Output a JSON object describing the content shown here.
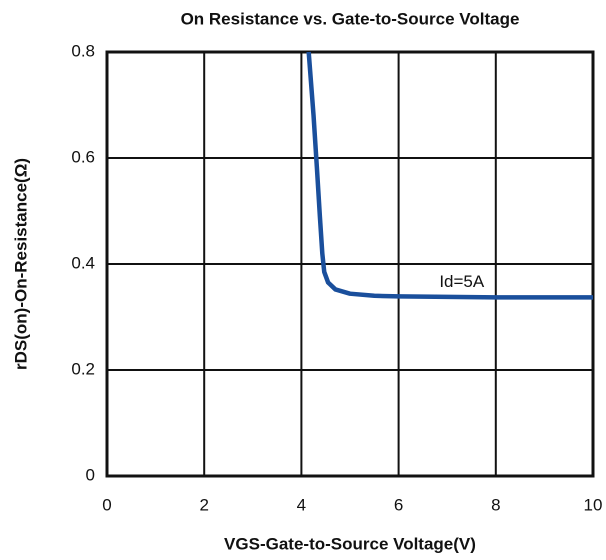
{
  "chart_data": {
    "type": "line",
    "title": "On Resistance vs. Gate-to-Source Voltage",
    "x_label": "VGS-Gate-to-Source Voltage(V)",
    "y_label": "rDS(on)-On-Resistance(Ω)",
    "annotation": "Id=5A",
    "xlim": [
      0,
      10
    ],
    "xticks": [
      0,
      2,
      4,
      6,
      8,
      10
    ],
    "ylim": [
      0,
      0.8
    ],
    "yticks": [
      0,
      0.2,
      0.4,
      0.6,
      0.8
    ],
    "grid": true,
    "series": [
      {
        "name": "Id=5A",
        "color": "#1a4f9c",
        "x": [
          4.15,
          4.25,
          4.32,
          4.38,
          4.43,
          4.47,
          4.55,
          4.7,
          5.0,
          5.5,
          6.0,
          7.0,
          8.0,
          9.0,
          10.0
        ],
        "values": [
          0.8,
          0.68,
          0.58,
          0.49,
          0.42,
          0.385,
          0.365,
          0.352,
          0.344,
          0.34,
          0.339,
          0.338,
          0.337,
          0.337,
          0.337
        ]
      }
    ]
  }
}
